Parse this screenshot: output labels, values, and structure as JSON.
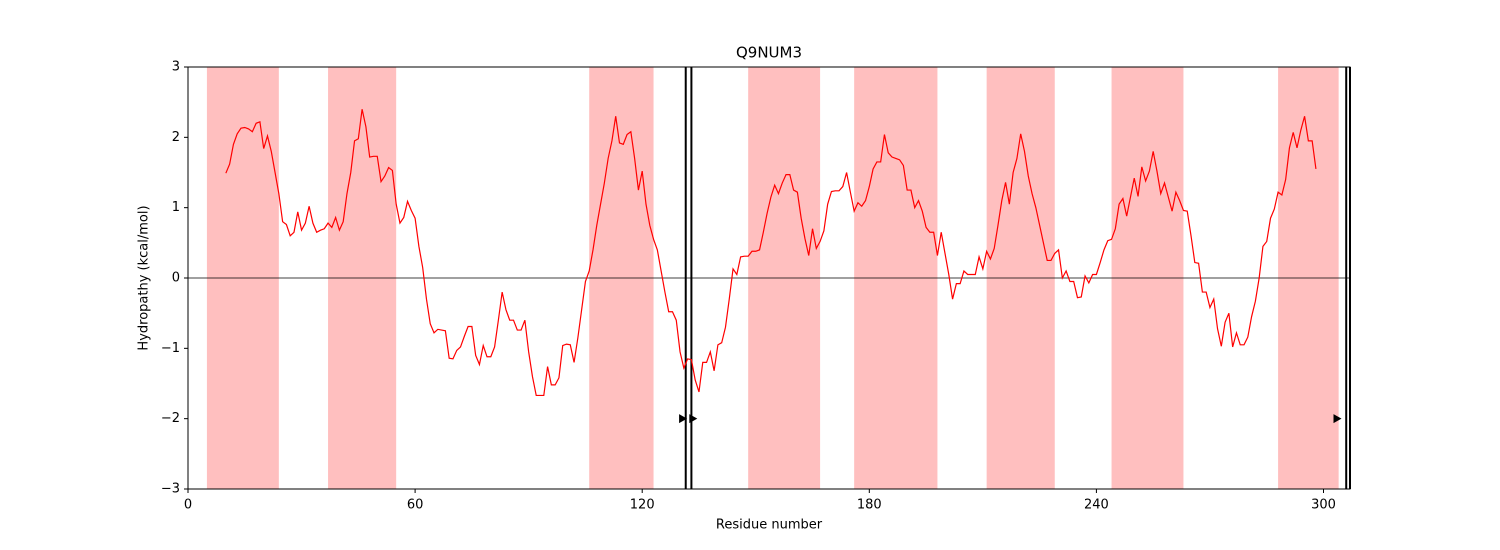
{
  "chart_data": {
    "type": "line",
    "title": "Q9NUM3",
    "xlabel": "Residue number",
    "ylabel": "Hydropathy (kcal/mol)",
    "color": "#ff0000",
    "region_color": "#ffbfbf",
    "xlim": [
      0,
      307
    ],
    "ylim": [
      -3,
      3
    ],
    "xticks": [
      0,
      60,
      120,
      180,
      240,
      300
    ],
    "yticks": [
      {
        "value": -3,
        "label": "−3"
      },
      {
        "value": -2,
        "label": "−2"
      },
      {
        "value": -1,
        "label": "−1"
      },
      0,
      1,
      2,
      3
    ],
    "hline": 0,
    "regions": [
      [
        5,
        24
      ],
      [
        37,
        55
      ],
      [
        106,
        123
      ],
      [
        148,
        167
      ],
      [
        176,
        198
      ],
      [
        211,
        229
      ],
      [
        244,
        263
      ],
      [
        288,
        304
      ]
    ],
    "vlines": [
      131.5,
      133,
      306,
      307
    ],
    "markers": {
      "x": [
        130.8,
        133.5,
        303.7
      ],
      "y": [
        -2,
        -2,
        -2
      ]
    },
    "x": [
      10,
      11,
      12,
      13,
      14,
      15,
      16,
      17,
      18,
      19,
      20,
      21,
      22,
      23,
      24,
      25,
      26,
      27,
      28,
      29,
      30,
      31,
      32,
      33,
      34,
      35,
      36,
      37,
      38,
      39,
      40,
      41,
      42,
      43,
      44,
      45,
      46,
      47,
      48,
      49,
      50,
      51,
      52,
      53,
      54,
      55,
      56,
      57,
      58,
      59,
      60,
      61,
      62,
      63,
      64,
      65,
      66,
      67,
      68,
      69,
      70,
      71,
      72,
      73,
      74,
      75,
      76,
      77,
      78,
      79,
      80,
      81,
      82,
      83,
      84,
      85,
      86,
      87,
      88,
      89,
      90,
      91,
      92,
      93,
      94,
      95,
      96,
      97,
      98,
      99,
      100,
      101,
      102,
      103,
      104,
      105,
      106,
      107,
      108,
      109,
      110,
      111,
      112,
      113,
      114,
      115,
      116,
      117,
      118,
      119,
      120,
      121,
      122,
      123,
      124,
      125,
      126,
      127,
      128,
      129,
      130,
      131,
      132,
      133,
      134,
      135,
      136,
      137,
      138,
      139,
      140,
      141,
      142,
      143,
      144,
      145,
      146,
      147,
      148,
      149,
      150,
      151,
      152,
      153,
      154,
      155,
      156,
      157,
      158,
      159,
      160,
      161,
      162,
      163,
      164,
      165,
      166,
      167,
      168,
      169,
      170,
      171,
      172,
      173,
      174,
      175,
      176,
      177,
      178,
      179,
      180,
      181,
      182,
      183,
      184,
      185,
      186,
      187,
      188,
      189,
      190,
      191,
      192,
      193,
      194,
      195,
      196,
      197,
      198,
      199,
      200,
      201,
      202,
      203,
      204,
      205,
      206,
      207,
      208,
      209,
      210,
      211,
      212,
      213,
      214,
      215,
      216,
      217,
      218,
      219,
      220,
      221,
      222,
      223,
      224,
      225,
      226,
      227,
      228,
      229,
      230,
      231,
      232,
      233,
      234,
      235,
      236,
      237,
      238,
      239,
      240,
      241,
      242,
      243,
      244,
      245,
      246,
      247,
      248,
      249,
      250,
      251,
      252,
      253,
      254,
      255,
      256,
      257,
      258,
      259,
      260,
      261,
      262,
      263,
      264,
      265,
      266,
      267,
      268,
      269,
      270,
      271,
      272,
      273,
      274,
      275,
      276,
      277,
      278,
      279,
      280,
      281,
      282,
      283,
      284,
      285,
      286,
      287,
      288,
      289,
      290,
      291,
      292,
      293,
      294,
      295,
      296,
      297,
      298
    ],
    "values": [
      1.49,
      1.62,
      1.9,
      2.05,
      2.13,
      2.14,
      2.12,
      2.08,
      2.2,
      2.22,
      1.84,
      2.02,
      1.8,
      1.5,
      1.2,
      0.8,
      0.76,
      0.6,
      0.65,
      0.94,
      0.68,
      0.78,
      1.02,
      0.78,
      0.65,
      0.68,
      0.7,
      0.78,
      0.72,
      0.86,
      0.68,
      0.8,
      1.2,
      1.5,
      1.95,
      1.98,
      2.4,
      2.15,
      1.72,
      1.73,
      1.73,
      1.37,
      1.45,
      1.57,
      1.53,
      1.05,
      0.78,
      0.86,
      1.09,
      0.96,
      0.85,
      0.45,
      0.15,
      -0.3,
      -0.65,
      -0.78,
      -0.73,
      -0.74,
      -0.75,
      -1.14,
      -1.15,
      -1.03,
      -0.98,
      -0.83,
      -0.69,
      -0.69,
      -1.1,
      -1.23,
      -0.96,
      -1.12,
      -1.12,
      -0.98,
      -0.6,
      -0.2,
      -0.45,
      -0.6,
      -0.6,
      -0.74,
      -0.74,
      -0.6,
      -1.05,
      -1.4,
      -1.67,
      -1.67,
      -1.67,
      -1.26,
      -1.52,
      -1.52,
      -1.42,
      -0.96,
      -0.94,
      -0.95,
      -1.2,
      -0.85,
      -0.45,
      -0.05,
      0.1,
      0.4,
      0.75,
      1.05,
      1.35,
      1.7,
      1.95,
      2.3,
      1.92,
      1.9,
      2.04,
      2.08,
      1.7,
      1.25,
      1.52,
      1.05,
      0.75,
      0.55,
      0.4,
      0.1,
      -0.2,
      -0.48,
      -0.48,
      -0.6,
      -1.05,
      -1.28,
      -1.15,
      -1.16,
      -1.45,
      -1.62,
      -1.2,
      -1.2,
      -1.05,
      -1.32,
      -0.95,
      -0.92,
      -0.7,
      -0.3,
      0.13,
      0.05,
      0.3,
      0.31,
      0.31,
      0.38,
      0.38,
      0.4,
      0.65,
      0.92,
      1.15,
      1.32,
      1.2,
      1.35,
      1.47,
      1.47,
      1.25,
      1.22,
      0.85,
      0.56,
      0.32,
      0.7,
      0.42,
      0.52,
      0.67,
      1.05,
      1.23,
      1.24,
      1.24,
      1.3,
      1.5,
      1.22,
      0.95,
      1.07,
      1.02,
      1.1,
      1.3,
      1.55,
      1.65,
      1.65,
      2.04,
      1.78,
      1.72,
      1.7,
      1.68,
      1.6,
      1.25,
      1.25,
      1.0,
      1.1,
      0.95,
      0.72,
      0.65,
      0.65,
      0.32,
      0.65,
      0.35,
      0.05,
      -0.3,
      -0.08,
      -0.08,
      0.1,
      0.05,
      0.05,
      0.05,
      0.3,
      0.13,
      0.38,
      0.27,
      0.42,
      0.75,
      1.1,
      1.36,
      1.05,
      1.5,
      1.7,
      2.05,
      1.8,
      1.45,
      1.2,
      1.0,
      0.75,
      0.5,
      0.25,
      0.25,
      0.35,
      0.4,
      0.0,
      0.1,
      -0.05,
      -0.05,
      -0.28,
      -0.27,
      0.03,
      -0.07,
      0.05,
      0.05,
      0.22,
      0.4,
      0.53,
      0.55,
      0.7,
      1.05,
      1.13,
      0.88,
      1.15,
      1.42,
      1.16,
      1.58,
      1.38,
      1.52,
      1.8,
      1.52,
      1.2,
      1.35,
      1.15,
      0.95,
      1.22,
      1.1,
      0.96,
      0.95,
      0.6,
      0.22,
      0.21,
      -0.2,
      -0.2,
      -0.42,
      -0.3,
      -0.72,
      -0.97,
      -0.63,
      -0.5,
      -0.98,
      -0.78,
      -0.95,
      -0.95,
      -0.84,
      -0.55,
      -0.33,
      0.0,
      0.45,
      0.52,
      0.85,
      0.98,
      1.22,
      1.18,
      1.4,
      1.85,
      2.07,
      1.85,
      2.1,
      2.3,
      1.95,
      1.95,
      1.55
    ]
  }
}
